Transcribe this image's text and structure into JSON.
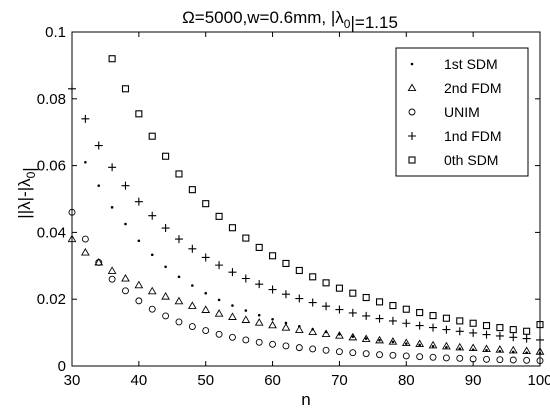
{
  "chart_data": {
    "type": "scatter",
    "title_parts": [
      {
        "t": "Ω=5000,w=0.6mm, |λ"
      },
      {
        "t": "0",
        "sub": true
      },
      {
        "t": "|=1.15"
      }
    ],
    "xlabel": "n",
    "ylabel_parts": [
      {
        "t": "||λ|-|λ"
      },
      {
        "t": "0",
        "sub": true
      },
      {
        "t": "|"
      }
    ],
    "xlim": [
      30,
      100
    ],
    "ylim": [
      0,
      0.1
    ],
    "x_ticks": [
      "30",
      "40",
      "50",
      "60",
      "70",
      "80",
      "90",
      "100"
    ],
    "y_ticks": [
      "0",
      "0.02",
      "0.04",
      "0.06",
      "0.08",
      "0.1"
    ],
    "grid": false,
    "legend_position": "top-right",
    "series": [
      {
        "name": "1st SDM",
        "marker": "dot",
        "x": [
          32,
          34,
          36,
          38,
          40,
          42,
          44,
          46,
          48,
          50,
          52,
          54,
          56,
          58,
          60,
          62,
          64,
          66,
          68,
          70,
          72,
          74,
          76,
          78,
          80,
          82,
          84,
          86,
          88,
          90,
          92,
          94,
          96,
          98,
          100
        ],
        "y": [
          0.061,
          0.054,
          0.0475,
          0.0425,
          0.0375,
          0.0333,
          0.0297,
          0.0267,
          0.0241,
          0.0218,
          0.0198,
          0.0181,
          0.0166,
          0.0152,
          0.014,
          0.0129,
          0.0119,
          0.011,
          0.0102,
          0.0095,
          0.0088,
          0.0082,
          0.0077,
          0.0072,
          0.0067,
          0.0063,
          0.0059,
          0.0056,
          0.0052,
          0.0049,
          0.0047,
          0.0044,
          0.0042,
          0.004,
          0.0038
        ]
      },
      {
        "name": "2nd FDM",
        "marker": "triangle",
        "x": [
          30,
          32,
          34,
          36,
          38,
          40,
          42,
          44,
          46,
          48,
          50,
          52,
          54,
          56,
          58,
          60,
          62,
          64,
          66,
          68,
          70,
          72,
          74,
          76,
          78,
          80,
          82,
          84,
          86,
          88,
          90,
          92,
          94,
          96,
          98,
          100
        ],
        "y": [
          0.038,
          0.034,
          0.031,
          0.0285,
          0.0262,
          0.0242,
          0.0224,
          0.0208,
          0.0194,
          0.018,
          0.0168,
          0.0157,
          0.0147,
          0.0138,
          0.013,
          0.0122,
          0.0115,
          0.0108,
          0.0102,
          0.0096,
          0.0091,
          0.0086,
          0.0081,
          0.0077,
          0.0073,
          0.0069,
          0.0066,
          0.0062,
          0.0059,
          0.0056,
          0.0054,
          0.0051,
          0.0049,
          0.0047,
          0.0045,
          0.0043
        ]
      },
      {
        "name": "UNIM",
        "marker": "circle",
        "x": [
          30,
          32,
          34,
          36,
          38,
          40,
          42,
          44,
          46,
          48,
          50,
          52,
          54,
          56,
          58,
          60,
          62,
          64,
          66,
          68,
          70,
          72,
          74,
          76,
          78,
          80,
          82,
          84,
          86,
          88,
          90,
          92,
          94,
          96,
          98,
          100
        ],
        "y": [
          0.046,
          0.038,
          0.031,
          0.026,
          0.0225,
          0.0195,
          0.017,
          0.015,
          0.0132,
          0.0118,
          0.0106,
          0.0095,
          0.0086,
          0.0078,
          0.0071,
          0.0065,
          0.006,
          0.0055,
          0.0051,
          0.0047,
          0.0043,
          0.004,
          0.0037,
          0.0034,
          0.0032,
          0.003,
          0.0028,
          0.0026,
          0.0024,
          0.0023,
          0.0021,
          0.002,
          0.0019,
          0.0018,
          0.0017,
          0.0016
        ]
      },
      {
        "name": "1nd FDM",
        "marker": "plus",
        "x": [
          30,
          32,
          34,
          36,
          38,
          40,
          42,
          44,
          46,
          48,
          50,
          52,
          54,
          56,
          58,
          60,
          62,
          64,
          66,
          68,
          70,
          72,
          74,
          76,
          78,
          80,
          82,
          84,
          86,
          88,
          90,
          92,
          94,
          96,
          98,
          100
        ],
        "y": [
          0.083,
          0.074,
          0.066,
          0.0595,
          0.054,
          0.0492,
          0.045,
          0.0413,
          0.038,
          0.0351,
          0.0325,
          0.0302,
          0.0281,
          0.0262,
          0.0245,
          0.0229,
          0.0215,
          0.0202,
          0.019,
          0.0179,
          0.0169,
          0.0159,
          0.015,
          0.0142,
          0.0135,
          0.0128,
          0.0121,
          0.0115,
          0.0109,
          0.0104,
          0.0099,
          0.0094,
          0.009,
          0.0086,
          0.0082,
          0.0078
        ]
      },
      {
        "name": "0th SDM",
        "marker": "square",
        "x": [
          36,
          38,
          40,
          42,
          44,
          46,
          48,
          50,
          52,
          54,
          56,
          58,
          60,
          62,
          64,
          66,
          68,
          70,
          72,
          74,
          76,
          78,
          80,
          82,
          84,
          86,
          88,
          90,
          92,
          94,
          96,
          98,
          100
        ],
        "y": [
          0.092,
          0.083,
          0.0755,
          0.0688,
          0.0628,
          0.0575,
          0.0528,
          0.0486,
          0.0448,
          0.0414,
          0.0383,
          0.0355,
          0.033,
          0.0307,
          0.0286,
          0.0267,
          0.0249,
          0.0233,
          0.0218,
          0.0205,
          0.0192,
          0.0181,
          0.017,
          0.016,
          0.0151,
          0.0143,
          0.0135,
          0.0128,
          0.0121,
          0.0115,
          0.0109,
          0.0104,
          0.0124
        ]
      }
    ]
  }
}
